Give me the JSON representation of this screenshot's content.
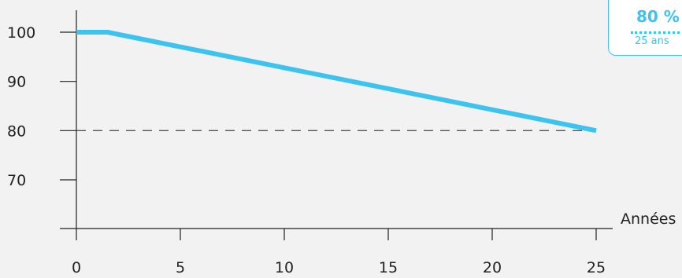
{
  "chart_data": {
    "type": "line",
    "title": "",
    "xlabel": "Années",
    "ylabel": "",
    "x_ticks": [
      0,
      5,
      10,
      15,
      20,
      25
    ],
    "y_ticks": [
      70,
      80,
      90,
      100
    ],
    "xlim": [
      0,
      25
    ],
    "ylim": [
      60,
      105
    ],
    "grid": false,
    "reference_line": {
      "y": 80,
      "style": "dashed"
    },
    "series": [
      {
        "x": [
          0,
          1.5,
          25
        ],
        "y": [
          100,
          100,
          80
        ],
        "color": "#3cc3ee"
      }
    ],
    "axis_color": "#222222",
    "reference_color": "#555555"
  },
  "callout": {
    "value": "80 %",
    "period": "25 ans",
    "color": "#3cc3ee"
  }
}
